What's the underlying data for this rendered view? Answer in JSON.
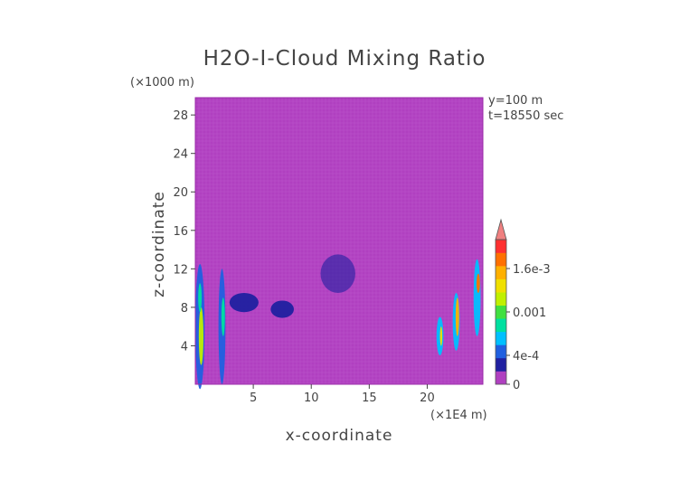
{
  "chart_data": {
    "type": "heatmap",
    "title": "H2O-I-Cloud Mixing Ratio",
    "xlabel": "x-coordinate",
    "ylabel": "z-coordinate",
    "x_units": "(×1E4 m)",
    "y_units": "(×1000 m)",
    "info": [
      "y=100 m",
      "t=18550 sec"
    ],
    "xlim": [
      0,
      24.8
    ],
    "ylim": [
      0,
      29.8
    ],
    "x_ticks": [
      5,
      10,
      15,
      20
    ],
    "x_tick_labels": [
      "5",
      "10",
      "15",
      "20"
    ],
    "y_ticks": [
      4,
      8,
      12,
      16,
      20,
      24,
      28
    ],
    "y_tick_labels": [
      "4",
      "8",
      "12",
      "16",
      "20",
      "24",
      "28"
    ],
    "colorbar": {
      "min": 0,
      "max": 0.002,
      "ticks": [
        0,
        0.0004,
        0.001,
        0.0016
      ],
      "tick_labels": [
        "0",
        "4e-4",
        "0.001",
        "1.6e-3"
      ],
      "colors": [
        "#b040c0",
        "#2020a0",
        "#2060e0",
        "#00c0ff",
        "#00e0a0",
        "#40e040",
        "#c0f000",
        "#f0e000",
        "#ffb000",
        "#ff7000",
        "#ff3030"
      ],
      "extend_color": "#f08080"
    },
    "background_color": "#b040c0",
    "regions": [
      {
        "x": 0.4,
        "z": 6,
        "w": 0.8,
        "h": 13,
        "level": 2
      },
      {
        "x": 0.5,
        "z": 5,
        "w": 0.4,
        "h": 6,
        "level": 6
      },
      {
        "x": 0.4,
        "z": 9,
        "w": 0.3,
        "h": 3,
        "level": 4
      },
      {
        "x": 2.3,
        "z": 6,
        "w": 0.6,
        "h": 12,
        "level": 2
      },
      {
        "x": 2.4,
        "z": 7,
        "w": 0.3,
        "h": 4,
        "level": 4
      },
      {
        "x": 4.2,
        "z": 8.5,
        "w": 2.5,
        "h": 2,
        "level": 1
      },
      {
        "x": 7.5,
        "z": 7.8,
        "w": 2,
        "h": 1.8,
        "level": 1
      },
      {
        "x": 12.3,
        "z": 11.5,
        "w": 3,
        "h": 4,
        "level": 0.5
      },
      {
        "x": 21.1,
        "z": 5,
        "w": 0.6,
        "h": 4,
        "level": 3
      },
      {
        "x": 21.2,
        "z": 5,
        "w": 0.2,
        "h": 2,
        "level": 7
      },
      {
        "x": 22.5,
        "z": 6.5,
        "w": 0.6,
        "h": 6,
        "level": 3
      },
      {
        "x": 22.6,
        "z": 7,
        "w": 0.3,
        "h": 4,
        "level": 8
      },
      {
        "x": 24.3,
        "z": 9,
        "w": 0.6,
        "h": 8,
        "level": 3
      },
      {
        "x": 24.4,
        "z": 10.5,
        "w": 0.3,
        "h": 2,
        "level": 9
      }
    ]
  }
}
